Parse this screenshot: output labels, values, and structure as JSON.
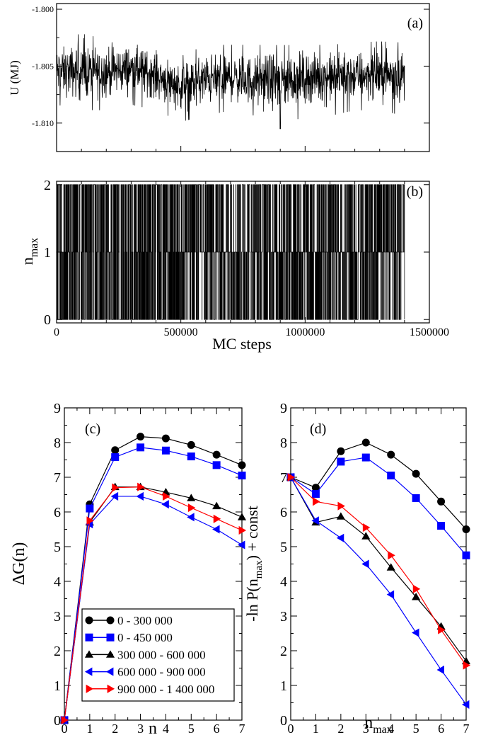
{
  "chart_data": [
    {
      "id": "a",
      "type": "line",
      "panel_label": "(a)",
      "ylabel": "U  (MJ)",
      "xlim": [
        0,
        1500000
      ],
      "ylim": [
        -1.8125,
        -1.7995
      ],
      "yticks": [
        -1.81,
        -1.805,
        -1.8
      ],
      "ytick_labels": [
        "-1.810",
        "-1.805",
        "-1.800"
      ],
      "xticks": [
        0,
        500000,
        1000000,
        1500000
      ],
      "series": [
        {
          "color": "#000000",
          "x": [
            0,
            100000,
            200000,
            300000,
            400000,
            500000,
            600000,
            700000,
            800000,
            900000,
            1000000,
            1100000,
            1200000,
            1300000,
            1400000
          ],
          "values": [
            -1.8055,
            -1.8055,
            -1.8055,
            -1.8052,
            -1.8058,
            -1.8068,
            -1.8062,
            -1.806,
            -1.8063,
            -1.8062,
            -1.806,
            -1.806,
            -1.8058,
            -1.8057,
            -1.8058
          ],
          "band": [
            -1.8085,
            -1.8025,
            -1.809,
            -1.802,
            -1.809,
            -1.8025,
            -1.8085,
            -1.8025,
            -1.809,
            -1.803,
            -1.81,
            -1.804,
            -1.8095,
            -1.803,
            -1.809,
            -1.803,
            -1.8095,
            -1.803,
            -1.8105,
            -1.803,
            -1.8095,
            -1.803,
            -1.8095,
            -1.803,
            -1.809,
            -1.8028,
            -1.809,
            -1.8027,
            -1.8095,
            -1.8028
          ],
          "min_point": [
            900000,
            -1.8105
          ]
        }
      ]
    },
    {
      "id": "b",
      "type": "line",
      "panel_label": "(b)",
      "xlabel": "MC steps",
      "ylabel": "n",
      "ylabel_sub": "max",
      "xlim": [
        0,
        1500000
      ],
      "ylim": [
        -0.05,
        2.05
      ],
      "yticks": [
        0,
        1,
        2
      ],
      "xticks": [
        0,
        500000,
        1000000,
        1500000
      ],
      "xtick_labels": [
        "0",
        "500000",
        "1000000",
        "1500000"
      ],
      "series": [
        {
          "color": "#000000",
          "x_range": [
            0,
            1400000
          ],
          "levels": [
            0,
            1,
            2
          ]
        }
      ]
    },
    {
      "id": "c",
      "type": "line",
      "panel_label": "(c)",
      "xlabel": "n",
      "ylabel": "ΔG(n)",
      "xlim": [
        0,
        7
      ],
      "ylim": [
        0,
        9
      ],
      "xticks": [
        0,
        1,
        2,
        3,
        4,
        5,
        6,
        7
      ],
      "yticks": [
        0,
        1,
        2,
        3,
        4,
        5,
        6,
        7,
        8,
        9
      ],
      "x": [
        0,
        1,
        2,
        3,
        4,
        5,
        6,
        7
      ],
      "legend": "lower center",
      "series": [
        {
          "name": "0 - 300 000",
          "color": "#000000",
          "marker": "circle",
          "values": [
            0,
            6.22,
            7.78,
            8.17,
            8.12,
            7.93,
            7.65,
            7.35
          ]
        },
        {
          "name": "0 - 450 000",
          "color": "#0000ff",
          "marker": "square",
          "values": [
            0,
            6.1,
            7.58,
            7.86,
            7.77,
            7.6,
            7.35,
            7.05
          ]
        },
        {
          "name": "300 000 - 600 000",
          "color": "#000000",
          "marker": "triangle-up",
          "values": [
            0,
            5.7,
            6.72,
            6.72,
            6.57,
            6.4,
            6.17,
            5.85
          ]
        },
        {
          "name": "600 000 - 900 000",
          "color": "#0000ff",
          "marker": "triangle-left",
          "values": [
            0,
            5.65,
            6.45,
            6.45,
            6.22,
            5.85,
            5.5,
            5.05
          ]
        },
        {
          "name": "900 000 - 1 400 000",
          "color": "#ff0000",
          "marker": "triangle-right",
          "values": [
            0,
            5.75,
            6.7,
            6.72,
            6.45,
            6.12,
            5.8,
            5.47
          ]
        }
      ]
    },
    {
      "id": "d",
      "type": "line",
      "panel_label": "(d)",
      "xlabel": "n",
      "xlabel_sub": "max",
      "ylabel_pre": "-ln P(n",
      "ylabel_sub": "max",
      "ylabel_post": ") + const",
      "xlim": [
        0,
        7
      ],
      "ylim": [
        0,
        9
      ],
      "xticks": [
        0,
        1,
        2,
        3,
        4,
        5,
        6,
        7
      ],
      "yticks": [
        0,
        1,
        2,
        3,
        4,
        5,
        6,
        7,
        8,
        9
      ],
      "x": [
        0,
        1,
        2,
        3,
        4,
        5,
        6,
        7
      ],
      "series": [
        {
          "color": "#000000",
          "marker": "circle",
          "values": [
            7.0,
            6.7,
            7.75,
            8.0,
            7.65,
            7.1,
            6.3,
            5.5
          ]
        },
        {
          "color": "#0000ff",
          "marker": "square",
          "values": [
            7.0,
            6.52,
            7.45,
            7.57,
            7.05,
            6.4,
            5.6,
            4.75
          ]
        },
        {
          "color": "#000000",
          "marker": "triangle-up",
          "values": [
            7.0,
            5.7,
            5.87,
            5.3,
            4.4,
            3.55,
            2.7,
            1.7
          ]
        },
        {
          "color": "#0000ff",
          "marker": "triangle-left",
          "values": [
            7.0,
            5.75,
            5.25,
            4.5,
            3.62,
            2.52,
            1.45,
            0.45
          ]
        },
        {
          "color": "#ff0000",
          "marker": "triangle-right",
          "values": [
            7.0,
            6.3,
            6.17,
            5.55,
            4.75,
            3.78,
            2.6,
            1.58
          ]
        }
      ]
    }
  ]
}
